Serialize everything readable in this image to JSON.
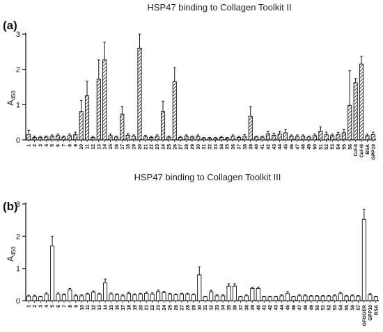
{
  "chart_data": [
    {
      "type": "bar",
      "panel_label": "(a)",
      "title": "HSP47  binding to Collagen Toolkit II",
      "ylabel": "A",
      "ylabel_sub": "450",
      "ylim": [
        0,
        3
      ],
      "yticks": [
        "0",
        "1",
        "2",
        "3"
      ],
      "bar_fill": "hatched",
      "categories": [
        "1",
        "2",
        "3",
        "4",
        "5",
        "6",
        "7",
        "8",
        "9",
        "10",
        "11",
        "12",
        "13",
        "14",
        "15",
        "16",
        "17",
        "18",
        "19",
        "20",
        "21",
        "22",
        "23",
        "24",
        "25",
        "26",
        "27",
        "28",
        "29",
        "30",
        "31",
        "32",
        "33",
        "34",
        "35",
        "36",
        "37",
        "38",
        "39",
        "40",
        "41",
        "42",
        "43",
        "44",
        "45",
        "46",
        "47",
        "48",
        "49",
        "50",
        "51",
        "52",
        "53",
        "54",
        "55",
        "56",
        "Col-II",
        "Col-III",
        "BSA",
        "GPP10"
      ],
      "values": [
        0.15,
        0.07,
        0.07,
        0.08,
        0.1,
        0.12,
        0.08,
        0.12,
        0.15,
        0.8,
        1.25,
        0.07,
        1.72,
        2.27,
        0.12,
        0.08,
        0.73,
        0.13,
        0.1,
        2.6,
        0.09,
        0.07,
        0.1,
        0.8,
        0.08,
        1.65,
        0.07,
        0.1,
        0.08,
        0.1,
        0.05,
        0.05,
        0.05,
        0.07,
        0.05,
        0.1,
        0.07,
        0.1,
        0.67,
        0.08,
        0.08,
        0.17,
        0.13,
        0.17,
        0.2,
        0.1,
        0.1,
        0.1,
        0.08,
        0.12,
        0.25,
        0.15,
        0.12,
        0.15,
        0.2,
        0.98,
        1.62,
        2.15,
        0.12,
        0.15
      ],
      "errors": [
        0.12,
        0.04,
        0.03,
        0.03,
        0.04,
        0.05,
        0.03,
        0.05,
        0.07,
        0.32,
        0.42,
        0.03,
        0.55,
        0.5,
        0.05,
        0.03,
        0.22,
        0.05,
        0.04,
        0.4,
        0.04,
        0.03,
        0.04,
        0.3,
        0.03,
        0.4,
        0.03,
        0.04,
        0.03,
        0.04,
        0.02,
        0.02,
        0.02,
        0.03,
        0.02,
        0.04,
        0.03,
        0.05,
        0.28,
        0.03,
        0.03,
        0.08,
        0.06,
        0.08,
        0.1,
        0.04,
        0.04,
        0.04,
        0.03,
        0.05,
        0.12,
        0.07,
        0.05,
        0.06,
        0.1,
        0.98,
        0.12,
        0.22,
        0.05,
        0.07
      ]
    },
    {
      "type": "bar",
      "panel_label": "(b)",
      "title": "HSP47 binding to Collagen Toolkit III",
      "ylabel": "A",
      "ylabel_sub": "450",
      "ylim": [
        0,
        3
      ],
      "yticks": [
        "0",
        "1",
        "2",
        "3"
      ],
      "bar_fill": "white",
      "categories": [
        "1",
        "2",
        "3",
        "4",
        "5",
        "6",
        "7",
        "8",
        "9",
        "10",
        "11",
        "12",
        "13",
        "14",
        "15",
        "16",
        "17",
        "18",
        "19",
        "20",
        "21",
        "22",
        "23",
        "24",
        "25",
        "26",
        "27",
        "28",
        "29",
        "30",
        "31",
        "32",
        "33",
        "34",
        "35",
        "36",
        "37",
        "38",
        "39",
        "40",
        "41",
        "42",
        "43",
        "44",
        "45",
        "46",
        "47",
        "48",
        "49",
        "50",
        "51",
        "52",
        "53",
        "54",
        "55",
        "56",
        "57",
        "GFOGER",
        "GPP10",
        "BSA"
      ],
      "values": [
        0.14,
        0.14,
        0.12,
        0.2,
        1.7,
        0.2,
        0.18,
        0.33,
        0.15,
        0.15,
        0.2,
        0.26,
        0.2,
        0.55,
        0.2,
        0.18,
        0.15,
        0.22,
        0.18,
        0.2,
        0.23,
        0.2,
        0.28,
        0.25,
        0.2,
        0.18,
        0.2,
        0.2,
        0.18,
        0.8,
        0.12,
        0.27,
        0.15,
        0.15,
        0.45,
        0.45,
        0.12,
        0.15,
        0.38,
        0.38,
        0.12,
        0.12,
        0.12,
        0.15,
        0.22,
        0.12,
        0.15,
        0.15,
        0.14,
        0.14,
        0.14,
        0.14,
        0.15,
        0.22,
        0.14,
        0.15,
        0.14,
        2.52,
        0.18,
        0.12
      ],
      "errors": [
        0.03,
        0.03,
        0.02,
        0.04,
        0.3,
        0.04,
        0.03,
        0.05,
        0.03,
        0.03,
        0.03,
        0.04,
        0.03,
        0.12,
        0.04,
        0.03,
        0.03,
        0.04,
        0.03,
        0.03,
        0.04,
        0.04,
        0.05,
        0.04,
        0.03,
        0.03,
        0.03,
        0.03,
        0.03,
        0.25,
        0.02,
        0.05,
        0.03,
        0.03,
        0.07,
        0.07,
        0.02,
        0.03,
        0.04,
        0.04,
        0.02,
        0.02,
        0.02,
        0.03,
        0.06,
        0.02,
        0.03,
        0.03,
        0.02,
        0.02,
        0.02,
        0.02,
        0.03,
        0.04,
        0.02,
        0.03,
        0.02,
        0.32,
        0.04,
        0.02
      ]
    }
  ]
}
